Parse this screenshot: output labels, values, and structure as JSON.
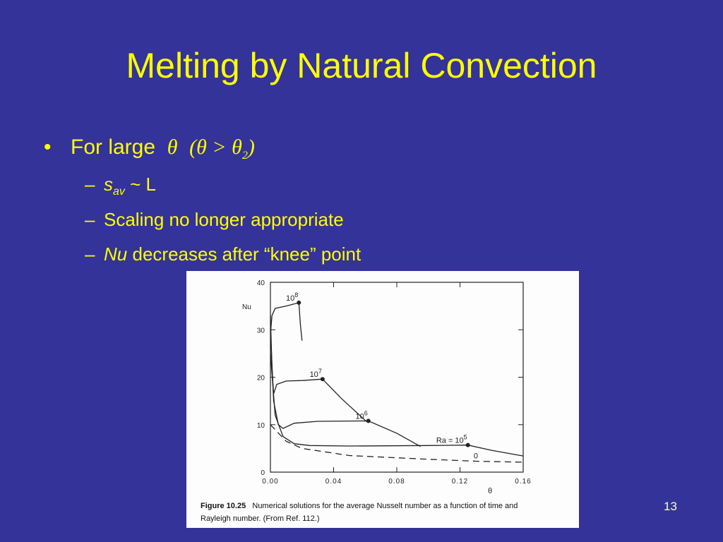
{
  "title": "Melting by Natural Convection",
  "bullets": [
    {
      "text": "For large",
      "math": "θ",
      "math2": "(θ > θ",
      "sub": "2",
      "close": ")"
    }
  ],
  "subbullets": [
    {
      "italic": "s",
      "sub": "av",
      "text": "~ L"
    },
    {
      "text": "Scaling no longer appropriate"
    },
    {
      "italic": "Nu",
      "text": "decreases after “knee” point"
    }
  ],
  "figure": {
    "caption_label": "Figure 10.25",
    "caption": "Numerical solutions for the average Nusselt number as a function of time and",
    "caption2": "Rayleigh number. (From Ref. 112.)"
  },
  "page_number": "13",
  "chart_data": {
    "type": "line",
    "ylabel": "Nu",
    "xlabel": "θ",
    "xlim": [
      0,
      0.16
    ],
    "ylim": [
      0,
      40
    ],
    "xticks": [
      {
        "value": 0,
        "label": "0.00"
      },
      0.04,
      0.08,
      0.12,
      0.16
    ],
    "yticks": [
      0,
      10,
      20,
      30,
      40
    ],
    "series": [
      {
        "label": [
          "10",
          "8"
        ],
        "color": "#222222",
        "knee": 4,
        "x": [
          0,
          0.001,
          0.003,
          0.01,
          0.018,
          0.019,
          0.02
        ],
        "values": [
          29,
          33,
          34.5,
          35,
          35.7,
          31,
          27.7
        ]
      },
      {
        "label": [
          "10",
          "7"
        ],
        "color": "#222222",
        "knee": 6,
        "x": [
          0,
          0.001,
          0.002,
          0.004,
          0.01,
          0.02,
          0.033,
          0.045,
          0.061
        ],
        "values": [
          33,
          22,
          16.5,
          18.5,
          19.2,
          19.3,
          19.6,
          15.5,
          10.6
        ]
      },
      {
        "label": [
          "10",
          "6"
        ],
        "color": "#222222",
        "knee": 6,
        "x": [
          0,
          0.002,
          0.005,
          0.008,
          0.015,
          0.03,
          0.062,
          0.08,
          0.095
        ],
        "values": [
          30,
          15,
          10,
          9.2,
          10.3,
          10.7,
          10.8,
          8.2,
          5.4
        ]
      },
      {
        "label": [
          "Ra = 10",
          "5"
        ],
        "color": "#222222",
        "knee": 7,
        "x": [
          0,
          0.003,
          0.008,
          0.015,
          0.025,
          0.05,
          0.1,
          0.125,
          0.14,
          0.16
        ],
        "values": [
          25,
          12,
          7.5,
          6,
          5.6,
          5.5,
          5.6,
          5.7,
          4.6,
          3.4
        ]
      },
      {
        "label": [
          "0"
        ],
        "color": "#222222",
        "dashed": true,
        "x": [
          0,
          0.01,
          0.02,
          0.05,
          0.1,
          0.13,
          0.16
        ],
        "values": [
          10,
          6.5,
          5,
          3.5,
          2.7,
          2.3,
          2.1
        ]
      }
    ]
  }
}
